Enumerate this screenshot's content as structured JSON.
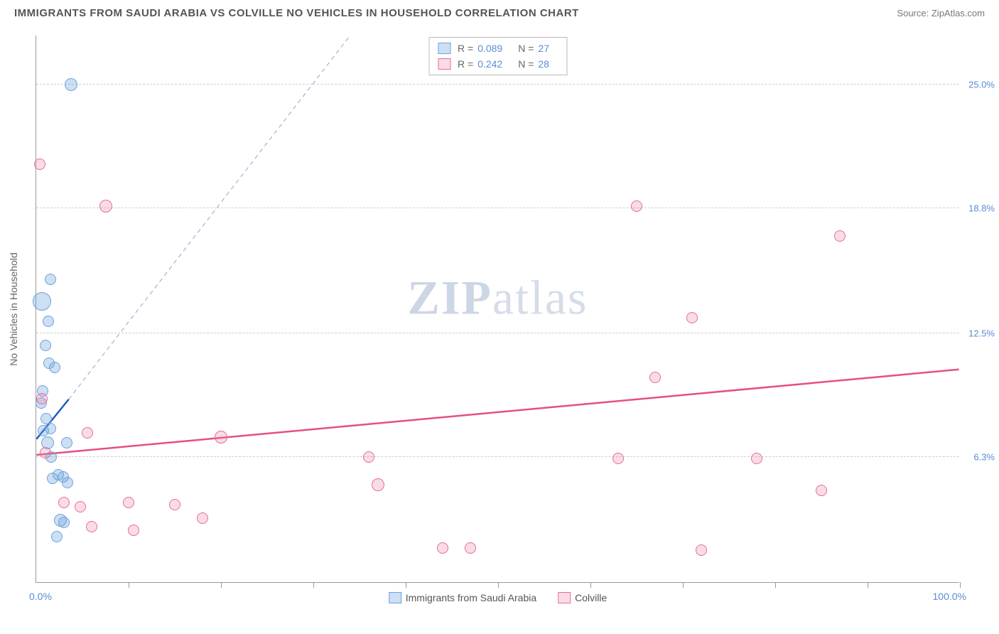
{
  "title": "IMMIGRANTS FROM SAUDI ARABIA VS COLVILLE NO VEHICLES IN HOUSEHOLD CORRELATION CHART",
  "source_label": "Source:",
  "source_name": "ZipAtlas.com",
  "yaxis_title": "No Vehicles in Household",
  "watermark_bold": "ZIP",
  "watermark_light": "atlas",
  "chart": {
    "type": "scatter",
    "xlim": [
      0,
      100
    ],
    "ylim": [
      0,
      27.5
    ],
    "yticks": [
      {
        "v": 6.3,
        "label": "6.3%"
      },
      {
        "v": 12.5,
        "label": "12.5%"
      },
      {
        "v": 18.8,
        "label": "18.8%"
      },
      {
        "v": 25.0,
        "label": "25.0%"
      }
    ],
    "xticks_pos": [
      10,
      20,
      30,
      40,
      50,
      60,
      70,
      80,
      90,
      100
    ],
    "xlabel_min": "0.0%",
    "xlabel_max": "100.0%",
    "background_color": "#ffffff",
    "grid_color": "#cccccc",
    "series": [
      {
        "name": "Immigrants from Saudi Arabia",
        "color_fill": "rgba(108,162,220,0.35)",
        "color_stroke": "#6ca2dc",
        "marker_radius": 8,
        "R": "0.089",
        "N": "27",
        "trend": {
          "x1": 0,
          "y1": 7.2,
          "x2": 3.5,
          "y2": 9.2,
          "color": "#1f5bbf",
          "width": 2.5,
          "dash": "none"
        },
        "extrap": {
          "x1": 3.5,
          "y1": 9.2,
          "x2": 34,
          "y2": 27.5,
          "color": "#8aa8c8",
          "width": 1,
          "dash": "6,5"
        },
        "points": [
          {
            "x": 3.8,
            "y": 25.0,
            "r": 9
          },
          {
            "x": 1.5,
            "y": 15.2,
            "r": 8
          },
          {
            "x": 0.6,
            "y": 14.1,
            "r": 13
          },
          {
            "x": 1.3,
            "y": 13.1,
            "r": 8
          },
          {
            "x": 1.0,
            "y": 11.9,
            "r": 8
          },
          {
            "x": 1.4,
            "y": 11.0,
            "r": 8
          },
          {
            "x": 2.0,
            "y": 10.8,
            "r": 8
          },
          {
            "x": 0.7,
            "y": 9.6,
            "r": 8
          },
          {
            "x": 0.5,
            "y": 9.0,
            "r": 8
          },
          {
            "x": 1.1,
            "y": 8.2,
            "r": 8
          },
          {
            "x": 0.8,
            "y": 7.6,
            "r": 8
          },
          {
            "x": 1.5,
            "y": 7.7,
            "r": 8
          },
          {
            "x": 1.2,
            "y": 7.0,
            "r": 9
          },
          {
            "x": 3.3,
            "y": 7.0,
            "r": 8
          },
          {
            "x": 1.6,
            "y": 6.3,
            "r": 8
          },
          {
            "x": 2.4,
            "y": 5.4,
            "r": 8
          },
          {
            "x": 2.9,
            "y": 5.3,
            "r": 8
          },
          {
            "x": 1.8,
            "y": 5.2,
            "r": 8
          },
          {
            "x": 3.4,
            "y": 5.0,
            "r": 8
          },
          {
            "x": 2.6,
            "y": 3.1,
            "r": 9
          },
          {
            "x": 3.0,
            "y": 3.0,
            "r": 8
          },
          {
            "x": 2.2,
            "y": 2.3,
            "r": 8
          }
        ]
      },
      {
        "name": "Colville",
        "color_fill": "rgba(235,130,165,0.28)",
        "color_stroke": "#e86b9b",
        "marker_radius": 8,
        "R": "0.242",
        "N": "28",
        "trend": {
          "x1": 0,
          "y1": 6.4,
          "x2": 100,
          "y2": 10.7,
          "color": "#e54e8a",
          "width": 2.5,
          "dash": "none"
        },
        "points": [
          {
            "x": 0.4,
            "y": 21.0,
            "r": 8
          },
          {
            "x": 7.5,
            "y": 18.9,
            "r": 9
          },
          {
            "x": 65,
            "y": 18.9,
            "r": 8
          },
          {
            "x": 87,
            "y": 17.4,
            "r": 8
          },
          {
            "x": 71,
            "y": 13.3,
            "r": 8
          },
          {
            "x": 67,
            "y": 10.3,
            "r": 8
          },
          {
            "x": 0.6,
            "y": 9.2,
            "r": 8
          },
          {
            "x": 5.5,
            "y": 7.5,
            "r": 8
          },
          {
            "x": 20,
            "y": 7.3,
            "r": 9
          },
          {
            "x": 1.0,
            "y": 6.5,
            "r": 8
          },
          {
            "x": 36,
            "y": 6.3,
            "r": 8
          },
          {
            "x": 63,
            "y": 6.2,
            "r": 8
          },
          {
            "x": 78,
            "y": 6.2,
            "r": 8
          },
          {
            "x": 37,
            "y": 4.9,
            "r": 9
          },
          {
            "x": 85,
            "y": 4.6,
            "r": 8
          },
          {
            "x": 3.0,
            "y": 4.0,
            "r": 8
          },
          {
            "x": 4.8,
            "y": 3.8,
            "r": 8
          },
          {
            "x": 10,
            "y": 4.0,
            "r": 8
          },
          {
            "x": 15,
            "y": 3.9,
            "r": 8
          },
          {
            "x": 18,
            "y": 3.2,
            "r": 8
          },
          {
            "x": 6.0,
            "y": 2.8,
            "r": 8
          },
          {
            "x": 10.5,
            "y": 2.6,
            "r": 8
          },
          {
            "x": 44,
            "y": 1.7,
            "r": 8
          },
          {
            "x": 47,
            "y": 1.7,
            "r": 8
          },
          {
            "x": 72,
            "y": 1.6,
            "r": 8
          }
        ]
      }
    ]
  }
}
